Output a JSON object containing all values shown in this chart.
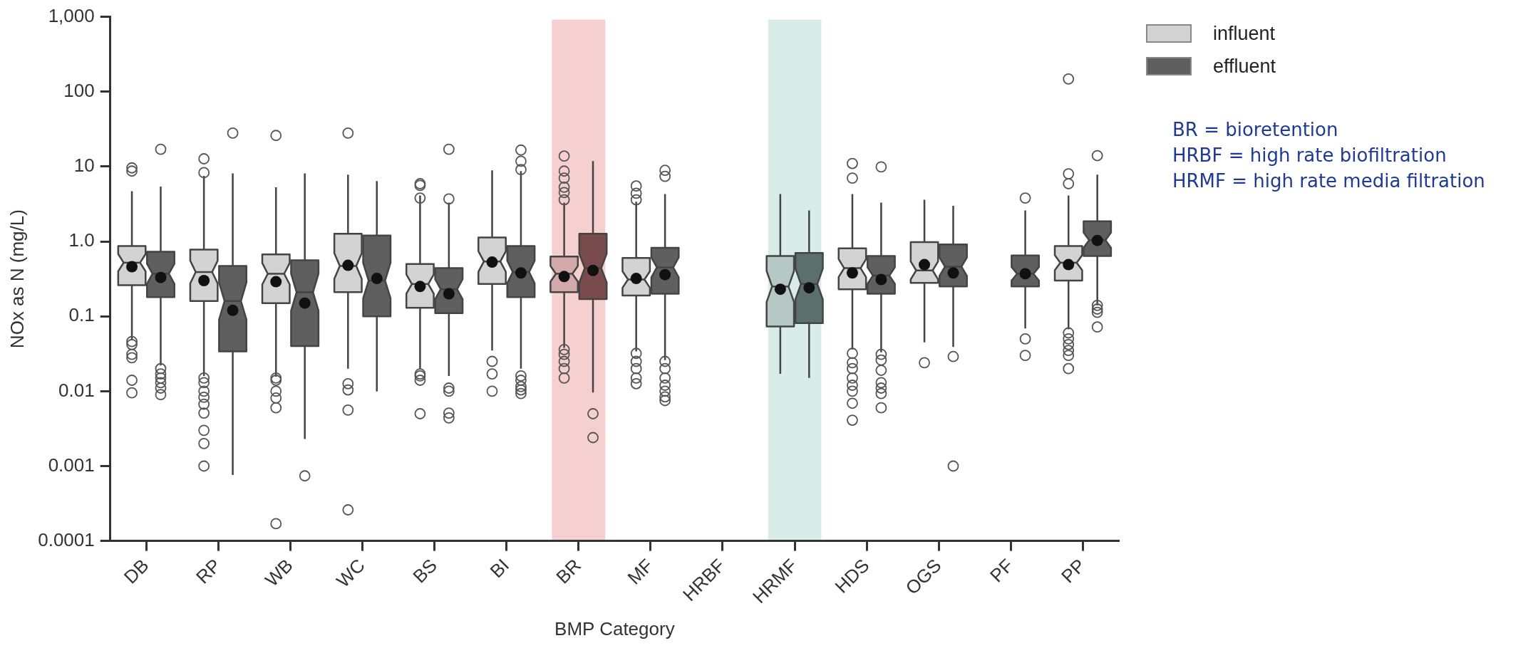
{
  "chart_data": {
    "type": "box",
    "xlabel": "BMP Category",
    "ylabel": "NOx as N (mg/L)",
    "log": "y",
    "ylim": [
      0.0001,
      1000
    ],
    "yticks": [
      0.0001,
      0.001,
      0.01,
      0.1,
      {
        "value": 1,
        "label": "1.0"
      },
      10,
      100,
      {
        "value": 1000,
        "label": "1,000"
      }
    ],
    "grid": false,
    "legend": "top right",
    "categories": [
      "DB",
      "RP",
      "WB",
      "WC",
      "BS",
      "BI",
      "BR",
      "MF",
      "HRBF",
      "HRMF",
      "HDS",
      "OGS",
      "PF",
      "PP"
    ],
    "bands": [
      {
        "axis": "x",
        "from": "BR",
        "to": "BR",
        "color": "#f6cfd1"
      },
      {
        "axis": "x",
        "from": "HRMF",
        "to": "HRMF",
        "color": "#d8ecea"
      }
    ],
    "series": [
      {
        "name": "influent",
        "color": "#d3d3d3",
        "colors": [
          "#d3d3d3",
          "#d3d3d3",
          "#d3d3d3",
          "#d3d3d3",
          "#d3d3d3",
          "#d3d3d3",
          "#d4a9ab",
          "#d3d3d3",
          null,
          "#b5c8c6",
          "#d3d3d3",
          "#d3d3d3",
          null,
          "#d3d3d3"
        ],
        "boxes": [
          {
            "low": 0.048,
            "q1": 0.26,
            "median": 0.52,
            "q3": 0.87,
            "high": 4.7,
            "mean": 0.46,
            "outliers": [
              9.6,
              8.7,
              0.046,
              0.042,
              0.031,
              0.028,
              0.014,
              0.0095
            ]
          },
          {
            "low": 0.016,
            "q1": 0.16,
            "median": 0.39,
            "q3": 0.78,
            "high": 7.5,
            "mean": 0.3,
            "outliers": [
              12.7,
              8.3,
              0.015,
              0.013,
              0.01,
              0.0083,
              0.0067,
              0.0051,
              0.003,
              0.002,
              0.001
            ]
          },
          {
            "low": 0.0156,
            "q1": 0.15,
            "median": 0.37,
            "q3": 0.67,
            "high": 5.3,
            "mean": 0.29,
            "outliers": [
              26,
              0.015,
              0.014,
              0.01,
              0.0081,
              0.006,
              0.00017
            ]
          },
          {
            "low": 0.02,
            "q1": 0.21,
            "median": 0.47,
            "q3": 1.27,
            "high": 7.8,
            "mean": 0.48,
            "outliers": [
              28,
              0.0126,
              0.0104,
              0.0056,
              0.00026
            ]
          },
          {
            "low": 0.02,
            "q1": 0.13,
            "median": 0.27,
            "q3": 0.5,
            "high": 4.1,
            "mean": 0.25,
            "outliers": [
              5.9,
              5.6,
              3.8,
              0.017,
              0.016,
              0.014,
              0.005
            ]
          },
          {
            "low": 0.035,
            "q1": 0.27,
            "median": 0.54,
            "q3": 1.13,
            "high": 8.9,
            "mean": 0.53,
            "outliers": [
              0.025,
              0.017,
              0.01
            ]
          },
          {
            "low": 0.038,
            "q1": 0.21,
            "median": 0.37,
            "q3": 0.63,
            "high": 3.3,
            "mean": 0.34,
            "outliers": [
              13.8,
              8.7,
              7,
              5.3,
              4.5,
              3.6,
              0.036,
              0.031,
              0.025,
              0.02,
              0.015
            ]
          },
          {
            "low": 0.034,
            "q1": 0.19,
            "median": 0.31,
            "q3": 0.6,
            "high": 3.4,
            "mean": 0.32,
            "outliers": [
              5.5,
              4.4,
              3.6,
              0.032,
              0.025,
              0.02,
              0.015,
              0.0126
            ]
          },
          null,
          {
            "low": 0.017,
            "q1": 0.073,
            "median": 0.25,
            "q3": 0.64,
            "high": 4.3,
            "mean": 0.23
          },
          {
            "low": 0.036,
            "q1": 0.23,
            "median": 0.44,
            "q3": 0.81,
            "high": 4.3,
            "mean": 0.38,
            "outliers": [
              11,
              7,
              0.032,
              0.024,
              0.02,
              0.015,
              0.012,
              0.01,
              0.0069,
              0.0041
            ]
          },
          {
            "low": 0.045,
            "q1": 0.28,
            "median": 0.41,
            "q3": 0.98,
            "high": 3.6,
            "mean": 0.49,
            "outliers": [
              0.024
            ]
          },
          null,
          {
            "low": 0.067,
            "q1": 0.3,
            "median": 0.52,
            "q3": 0.87,
            "high": 4.1,
            "mean": 0.49,
            "outliers": [
              148,
              8,
              5.9,
              0.06,
              0.05,
              0.042,
              0.035,
              0.03,
              0.02
            ]
          }
        ]
      },
      {
        "name": "effluent",
        "color": "#5f5f5f",
        "colors": [
          "#5f5f5f",
          "#5f5f5f",
          "#5f5f5f",
          "#5f5f5f",
          "#5f5f5f",
          "#5f5f5f",
          "#7a4b4c",
          "#5f5f5f",
          null,
          "#5b6f6c",
          "#5f5f5f",
          "#5f5f5f",
          "#5f5f5f",
          "#5f5f5f"
        ],
        "boxes": [
          {
            "low": 0.022,
            "q1": 0.18,
            "median": 0.37,
            "q3": 0.73,
            "high": 5.4,
            "mean": 0.33,
            "outliers": [
              17,
              0.02,
              0.017,
              0.015,
              0.013,
              0.011,
              0.009
            ]
          },
          {
            "low": 0.00076,
            "q1": 0.034,
            "median": 0.16,
            "q3": 0.47,
            "high": 8.1,
            "mean": 0.12,
            "outliers": [
              28
            ]
          },
          {
            "low": 0.0023,
            "q1": 0.04,
            "median": 0.21,
            "q3": 0.56,
            "high": 8.1,
            "mean": 0.15,
            "outliers": [
              0.00074
            ]
          },
          {
            "low": 0.0099,
            "q1": 0.1,
            "median": 0.3,
            "q3": 1.2,
            "high": 6.4,
            "mean": 0.32
          },
          {
            "low": 0.016,
            "q1": 0.11,
            "median": 0.23,
            "q3": 0.44,
            "high": 3.3,
            "mean": 0.2,
            "outliers": [
              17,
              3.7,
              0.011,
              0.01,
              0.0051,
              0.0044
            ]
          },
          {
            "low": 0.02,
            "q1": 0.18,
            "median": 0.39,
            "q3": 0.87,
            "high": 8.7,
            "mean": 0.38,
            "outliers": [
              16.6,
              11.8,
              9.1,
              0.016,
              0.014,
              0.0115,
              0.0104,
              0.0093
            ]
          },
          {
            "low": 0.0096,
            "q1": 0.17,
            "median": 0.44,
            "q3": 1.27,
            "high": 11.8,
            "mean": 0.41,
            "outliers": [
              0.005,
              0.0024
            ]
          },
          {
            "low": 0.026,
            "q1": 0.2,
            "median": 0.45,
            "q3": 0.82,
            "high": 4.3,
            "mean": 0.36,
            "outliers": [
              8.9,
              7.4,
              0.025,
              0.02,
              0.015,
              0.012,
              0.01,
              0.0084,
              0.0075
            ]
          },
          null,
          {
            "low": 0.015,
            "q1": 0.081,
            "median": 0.27,
            "q3": 0.7,
            "high": 2.6,
            "mean": 0.24
          },
          {
            "low": 0.033,
            "q1": 0.2,
            "median": 0.35,
            "q3": 0.64,
            "high": 3.3,
            "mean": 0.31,
            "outliers": [
              9.9,
              0.031,
              0.026,
              0.019,
              0.013,
              0.011,
              0.0093,
              0.006
            ]
          },
          {
            "low": 0.039,
            "q1": 0.25,
            "median": 0.46,
            "q3": 0.91,
            "high": 3,
            "mean": 0.38,
            "outliers": [
              0.029,
              0.001
            ]
          },
          {
            "low": 0.069,
            "q1": 0.25,
            "median": 0.37,
            "q3": 0.65,
            "high": 2.6,
            "mean": 0.37,
            "outliers": [
              3.8,
              0.05,
              0.03
            ]
          },
          {
            "low": 0.14,
            "q1": 0.64,
            "median": 1.04,
            "q3": 1.86,
            "high": 7.8,
            "mean": 1.03,
            "outliers": [
              14,
              0.14,
              0.125,
              0.113,
              0.072
            ]
          }
        ]
      }
    ],
    "annotations": [
      "BR = bioretention",
      "HRBF = high rate biofiltration",
      "HRMF = high rate media filtration"
    ]
  }
}
